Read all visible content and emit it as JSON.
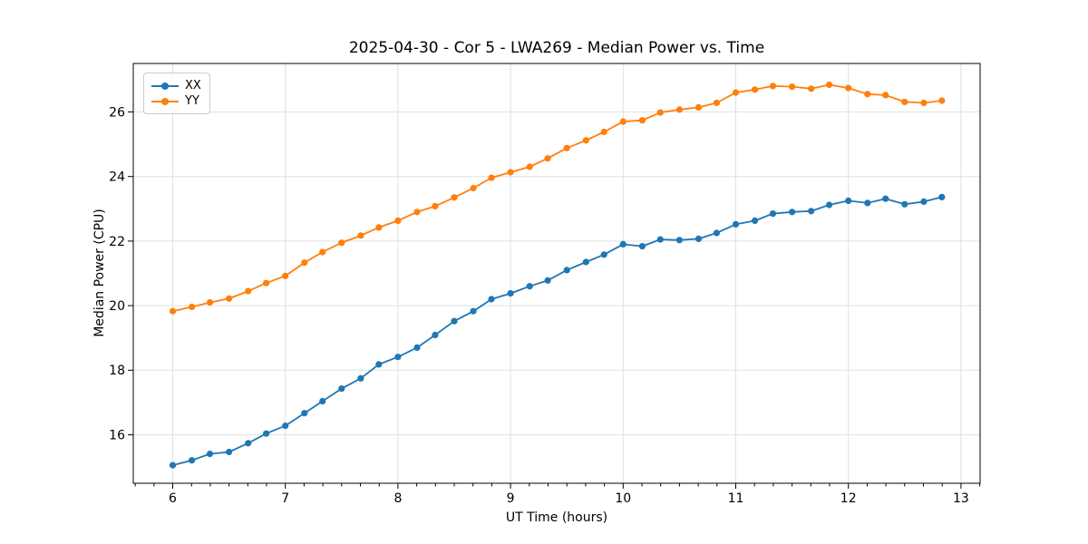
{
  "chart_data": {
    "type": "line",
    "title": "2025-04-30 - Cor 5 - LWA269 - Median Power vs. Time",
    "xlabel": "UT Time (hours)",
    "ylabel": "Median Power (CPU)",
    "xlim": [
      5.65,
      13.17
    ],
    "ylim": [
      14.5,
      27.5
    ],
    "xticks": [
      6,
      7,
      8,
      9,
      10,
      11,
      12,
      13
    ],
    "yticks": [
      16,
      18,
      20,
      22,
      24,
      26
    ],
    "x_minor_tick_step": 0.166667,
    "grid": true,
    "grid_color": "#e0e0e0",
    "legend_position": "upper-left",
    "x": [
      6.0,
      6.17,
      6.33,
      6.5,
      6.67,
      6.83,
      7.0,
      7.17,
      7.33,
      7.5,
      7.67,
      7.83,
      8.0,
      8.17,
      8.33,
      8.5,
      8.67,
      8.83,
      9.0,
      9.17,
      9.33,
      9.5,
      9.67,
      9.83,
      10.0,
      10.17,
      10.33,
      10.5,
      10.67,
      10.83,
      11.0,
      11.17,
      11.33,
      11.5,
      11.67,
      11.83,
      12.0,
      12.17,
      12.33,
      12.5,
      12.67,
      12.83
    ],
    "series": [
      {
        "name": "XX",
        "color": "#1f77b4",
        "marker": "circle",
        "values": [
          15.06,
          15.21,
          15.41,
          15.47,
          15.74,
          16.04,
          16.28,
          16.67,
          17.04,
          17.43,
          17.75,
          18.18,
          18.41,
          18.7,
          19.09,
          19.52,
          19.83,
          20.2,
          20.38,
          20.6,
          20.78,
          21.1,
          21.35,
          21.58,
          21.9,
          21.84,
          22.05,
          22.03,
          22.07,
          22.25,
          22.52,
          22.63,
          22.85,
          22.9,
          22.93,
          23.12,
          23.25,
          23.18,
          23.31,
          23.14,
          23.22,
          23.36
        ]
      },
      {
        "name": "YY",
        "color": "#ff7f0e",
        "marker": "circle",
        "values": [
          19.83,
          19.96,
          20.1,
          20.22,
          20.45,
          20.7,
          20.92,
          21.33,
          21.66,
          21.95,
          22.17,
          22.42,
          22.63,
          22.9,
          23.08,
          23.35,
          23.64,
          23.96,
          24.13,
          24.3,
          24.56,
          24.88,
          25.12,
          25.38,
          25.7,
          25.74,
          25.98,
          26.07,
          26.14,
          26.28,
          26.6,
          26.69,
          26.8,
          26.78,
          26.72,
          26.84,
          26.74,
          26.55,
          26.52,
          26.31,
          26.28,
          26.35
        ]
      }
    ]
  }
}
